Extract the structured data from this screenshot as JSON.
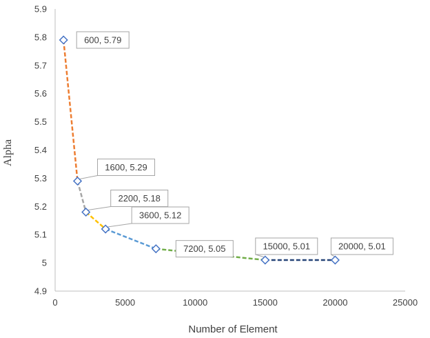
{
  "chart_data": {
    "type": "line",
    "title": "",
    "xlabel": "Number  of Element",
    "ylabel": "Alpha",
    "xlim": [
      0,
      25000
    ],
    "ylim": [
      4.9,
      5.9
    ],
    "x_ticks": [
      0,
      5000,
      10000,
      15000,
      20000,
      25000
    ],
    "x_tick_labels": [
      "0",
      "5000",
      "10000",
      "15000",
      "20000",
      "25000"
    ],
    "y_ticks": [
      4.9,
      5.0,
      5.1,
      5.2,
      5.3,
      5.4,
      5.5,
      5.6,
      5.7,
      5.8,
      5.9
    ],
    "y_tick_labels": [
      "4.9",
      "5",
      "5.1",
      "5.2",
      "5.3",
      "5.4",
      "5.5",
      "5.6",
      "5.7",
      "5.8",
      "5.9"
    ],
    "grid": false,
    "legend": "none",
    "marker": "diamond",
    "line_style": "dashed",
    "points": [
      {
        "x": 600,
        "y": 5.79,
        "label": "600, 5.79"
      },
      {
        "x": 1600,
        "y": 5.29,
        "label": "1600, 5.29"
      },
      {
        "x": 2200,
        "y": 5.18,
        "label": "2200, 5.18"
      },
      {
        "x": 3600,
        "y": 5.12,
        "label": "3600, 5.12"
      },
      {
        "x": 7200,
        "y": 5.05,
        "label": "7200, 5.05"
      },
      {
        "x": 15000,
        "y": 5.01,
        "label": "15000, 5.01"
      },
      {
        "x": 20000,
        "y": 5.01,
        "label": "20000, 5.01"
      }
    ],
    "segment_colors": [
      "#ED7D31",
      "#A5A5A5",
      "#FFC000",
      "#5B9BD5",
      "#70AD47",
      "#264478"
    ],
    "marker_color": "#4472C4",
    "label_box_border": "#A5A5A5"
  }
}
